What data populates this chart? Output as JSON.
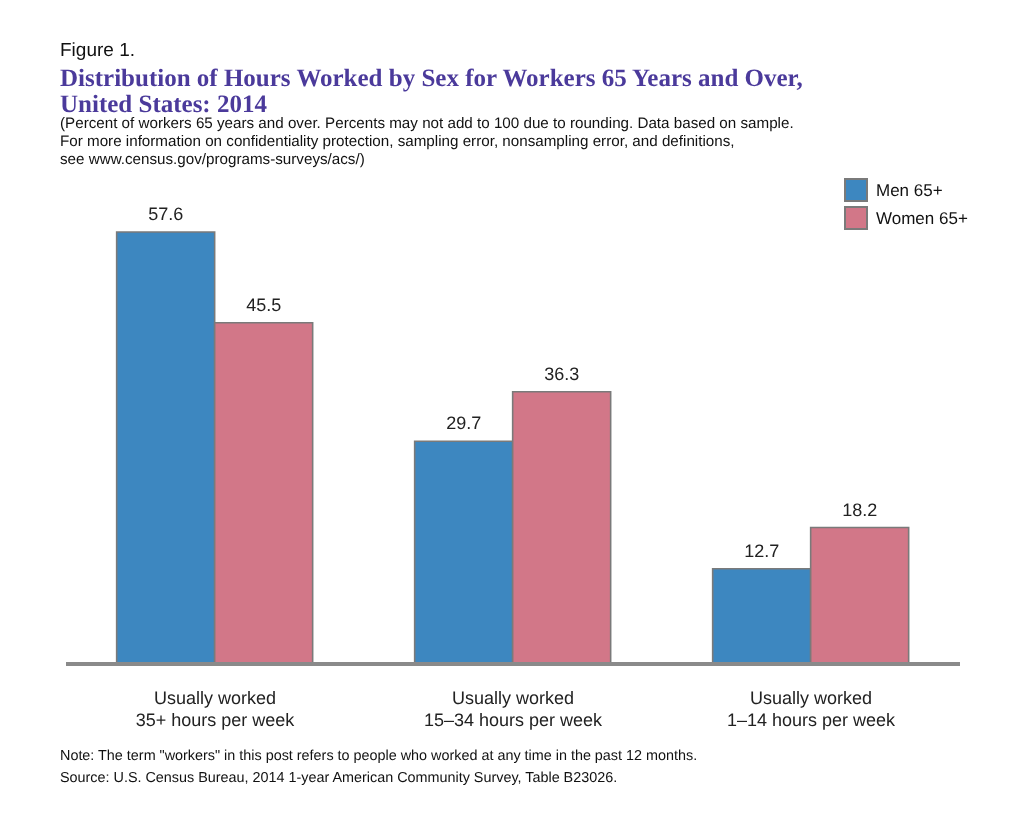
{
  "chart_data": {
    "type": "bar",
    "title": "Distribution of Hours Worked by Sex for Workers 65 Years and Over,\nUnited States: 2014",
    "subtitle": "(Percent of workers 65 years and over. Percents may not add to 100 due to rounding. Data based on sample.\nFor more information on confidentiality protection, sampling error, nonsampling error, and definitions,\nsee www.census.gov/programs-surveys/acs/)",
    "categories": [
      "Usually worked\n35+ hours per week",
      "Usually worked\n15–34 hours per week",
      "Usually worked\n1–14 hours per week"
    ],
    "series": [
      {
        "name": "Men 65+",
        "color": "#3d87c0",
        "values": [
          57.6,
          29.7,
          12.7
        ]
      },
      {
        "name": "Women 65+",
        "color": "#d27788",
        "values": [
          45.5,
          36.3,
          18.2
        ]
      }
    ],
    "data_labels": true,
    "legend": "top right",
    "annotations": [
      "Figure 1.",
      "Note: The term \"workers\" in this post refers to people who worked at any time in the past 12 months.",
      "Source: U.S. Census Bureau, 2014 1-year American Community Survey, Table B23026."
    ]
  }
}
